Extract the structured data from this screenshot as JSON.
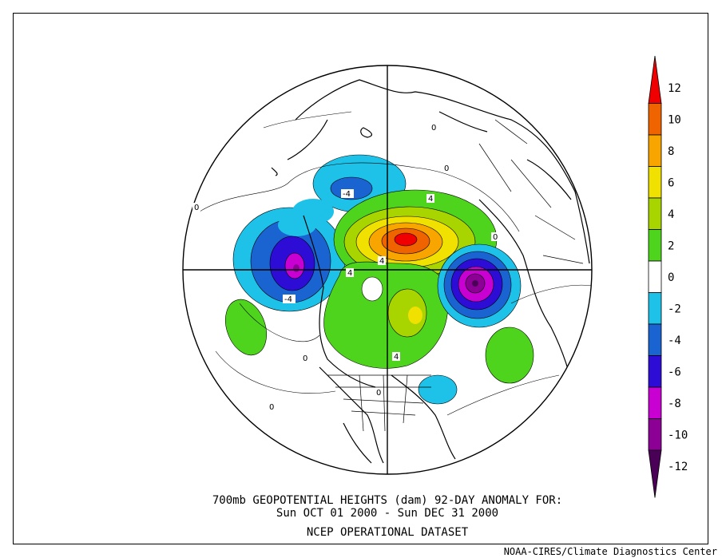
{
  "title_line1": "700mb GEOPOTENTIAL HEIGHTS (dam)   92-DAY ANOMALY FOR:",
  "title_line2": "Sun OCT 01 2000 - Sun DEC 31 2000",
  "title_line3": "NCEP OPERATIONAL DATASET",
  "credit": "NOAA-CIRES/Climate Diagnostics Center",
  "colorbar": {
    "bins": [
      {
        "from": -14,
        "to": -12,
        "color": "#4b0057"
      },
      {
        "from": -12,
        "to": -10,
        "color": "#8c0096"
      },
      {
        "from": -10,
        "to": -8,
        "color": "#c800d2"
      },
      {
        "from": -8,
        "to": -6,
        "color": "#2d0cd6"
      },
      {
        "from": -6,
        "to": -4,
        "color": "#1a64d2"
      },
      {
        "from": -4,
        "to": -2,
        "color": "#1ec2e8"
      },
      {
        "from": -2,
        "to": 2,
        "color": "#ffffff"
      },
      {
        "from": 2,
        "to": 4,
        "color": "#4fd41d"
      },
      {
        "from": 4,
        "to": 6,
        "color": "#a8d400"
      },
      {
        "from": 6,
        "to": 8,
        "color": "#f0e100"
      },
      {
        "from": 8,
        "to": 10,
        "color": "#f8a500"
      },
      {
        "from": 10,
        "to": 12,
        "color": "#f06400"
      },
      {
        "from": 12,
        "to": 14,
        "color": "#f00000"
      }
    ],
    "tick_labels": [
      "12",
      "10",
      "8",
      "6",
      "4",
      "2",
      "0",
      "-2",
      "-4",
      "-6",
      "-8",
      "-10",
      "-12"
    ]
  },
  "contour_labels": [
    "-4",
    "-4",
    "4",
    "4",
    "4",
    "0",
    "0",
    "0",
    "0",
    "0",
    "0",
    "0",
    "4"
  ],
  "anomaly_centers": [
    {
      "name": "north-pacific-low",
      "value": -10
    },
    {
      "name": "north-atlantic-low",
      "value": -12
    },
    {
      "name": "siberia-high",
      "value": 12
    },
    {
      "name": "greenland-low",
      "value": -6
    },
    {
      "name": "canada-high",
      "value": 6
    },
    {
      "name": "eastern-us-low",
      "value": -4
    },
    {
      "name": "hawaii-high",
      "value": 4
    },
    {
      "name": "eastern-atlantic-high",
      "value": 4
    }
  ]
}
